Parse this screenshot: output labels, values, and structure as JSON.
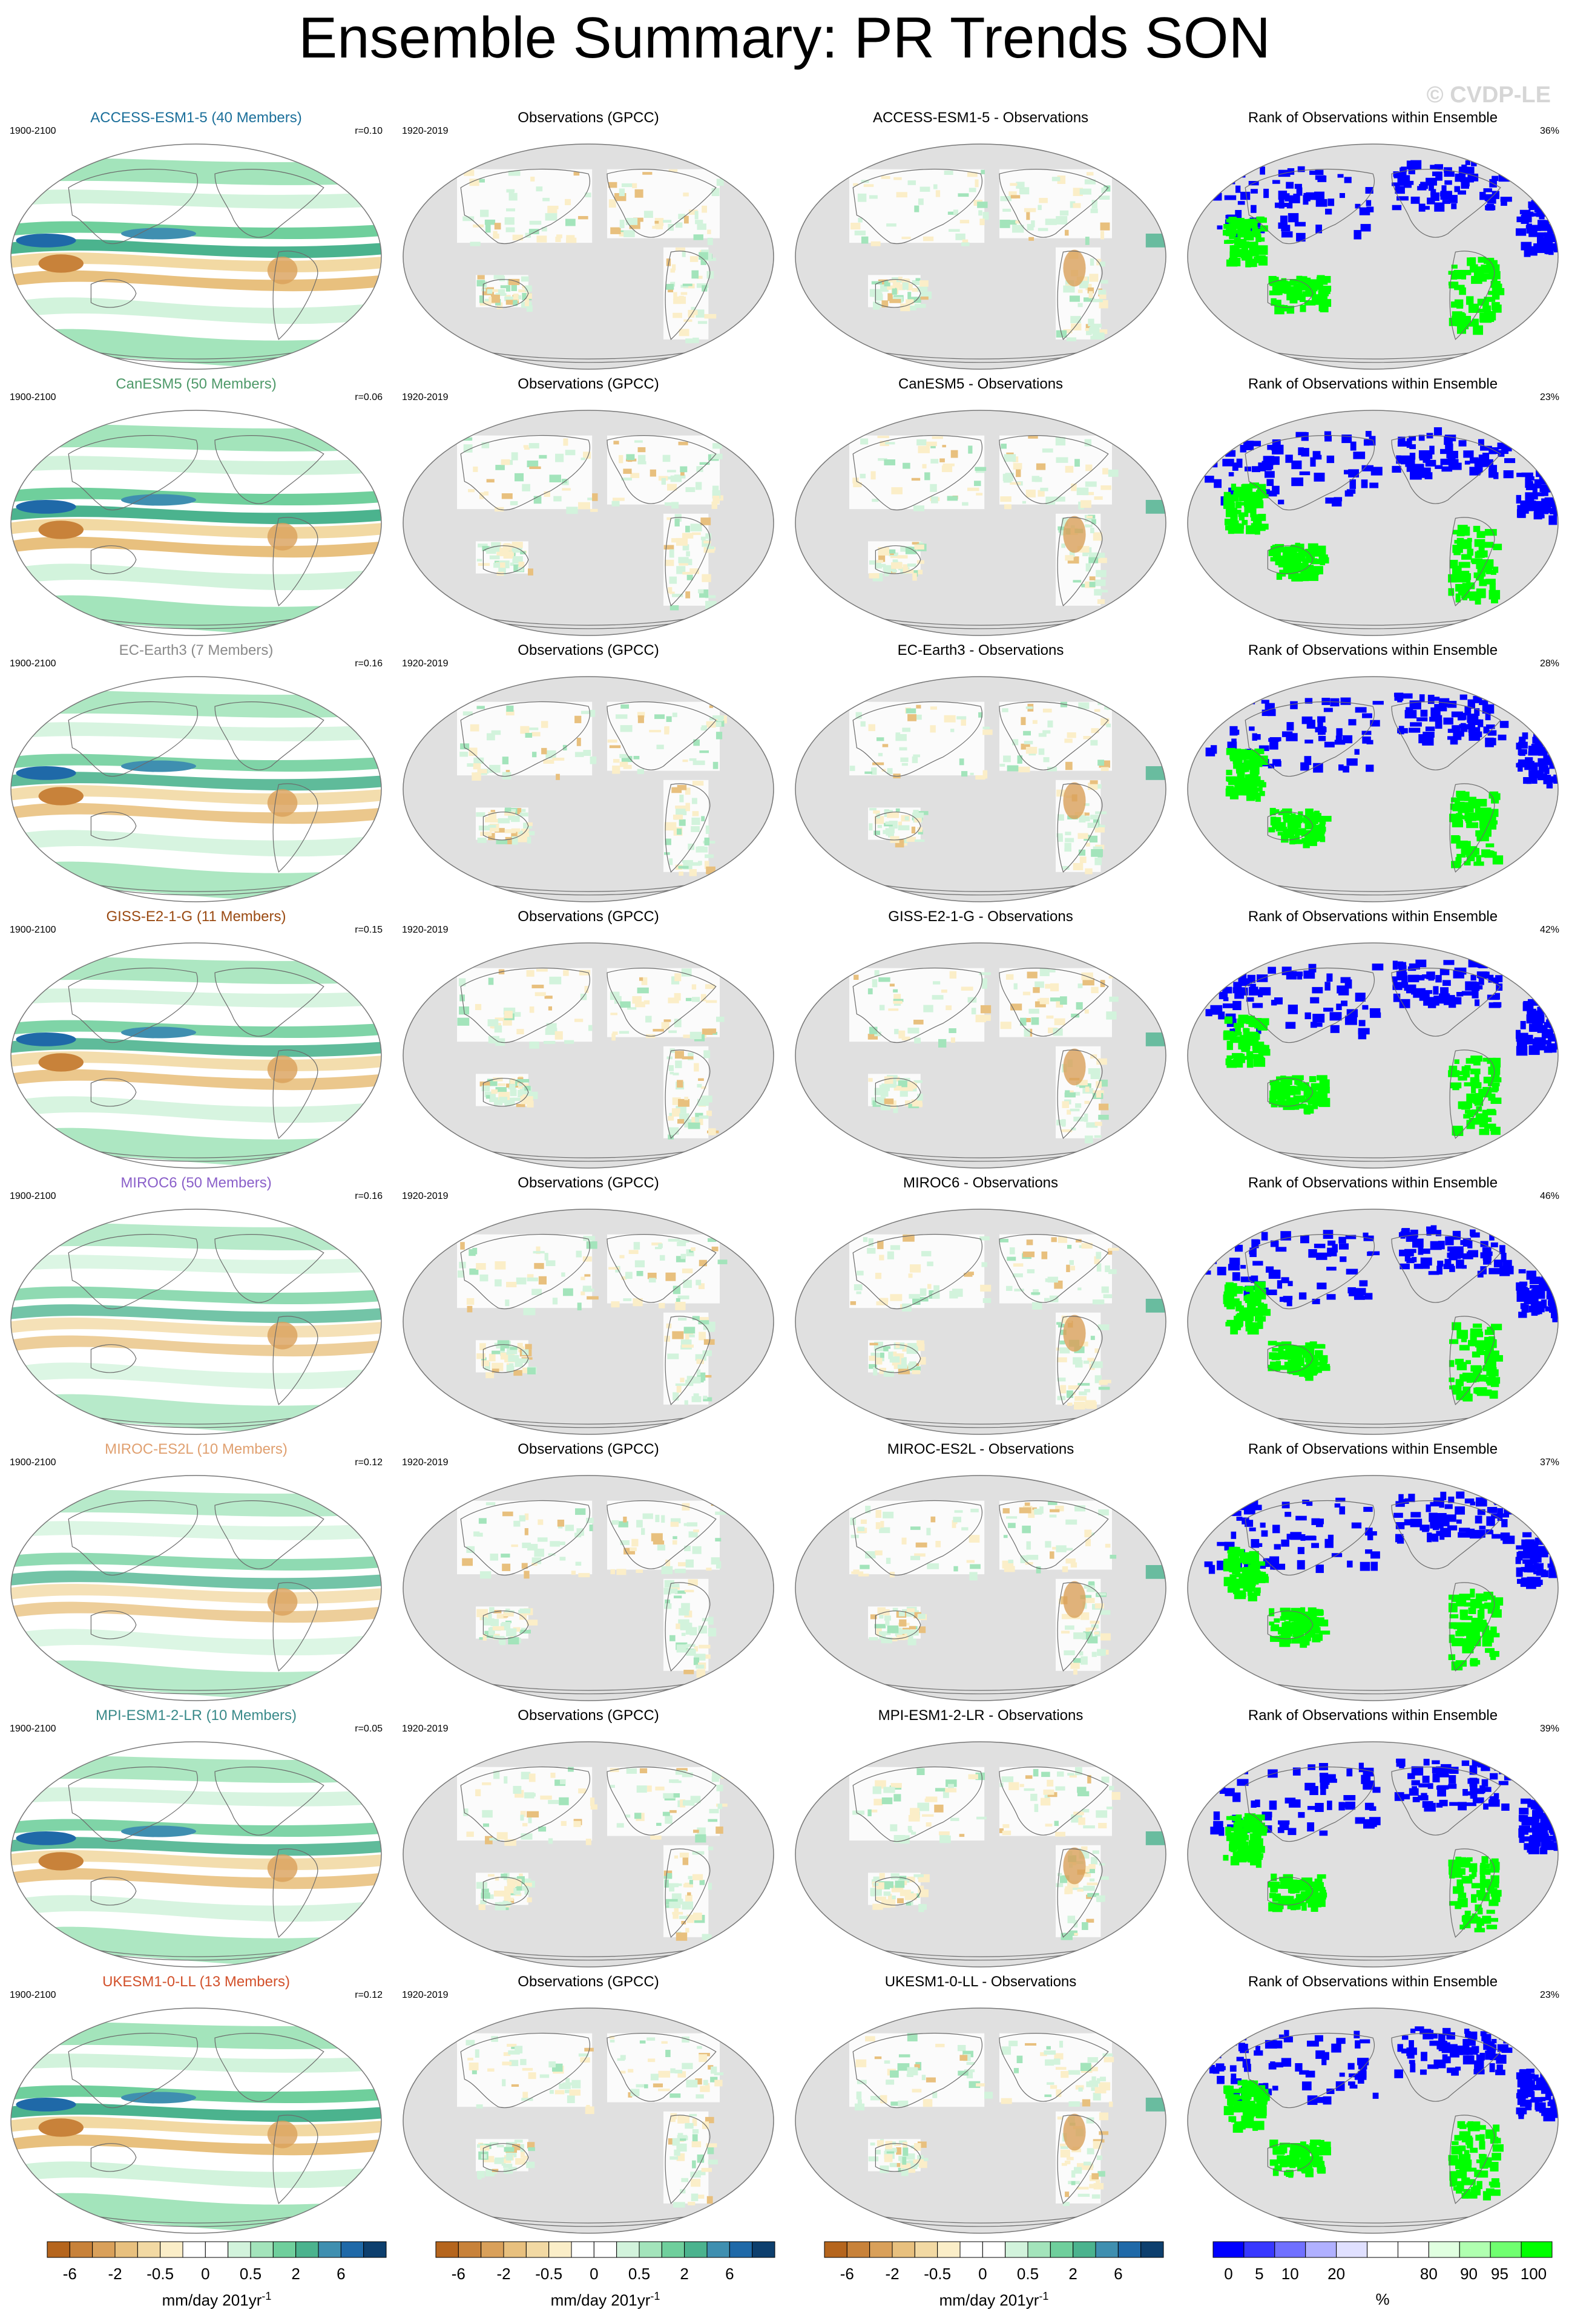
{
  "title": "Ensemble Summary: PR Trends SON",
  "watermark": "© CVDP-LE",
  "columns": {
    "obs_title": "Observations (GPCC)",
    "rank_title": "Rank of Observations within Ensemble",
    "model_period": "1900-2100",
    "obs_period": "1920-2019"
  },
  "rows": [
    {
      "model": "ACCESS-ESM1-5 (40 Members)",
      "color": "#1b6f9a",
      "r": "r=0.10",
      "diff": "ACCESS-ESM1-5 - Observations",
      "rank": "36%",
      "pattern": "strong"
    },
    {
      "model": "CanESM5 (50 Members)",
      "color": "#4f9a6a",
      "r": "r=0.06",
      "diff": "CanESM5 - Observations",
      "rank": "23%",
      "pattern": "strong"
    },
    {
      "model": "EC-Earth3 (7 Members)",
      "color": "#8a8a8a",
      "r": "r=0.16",
      "diff": "EC-Earth3 - Observations",
      "rank": "28%",
      "pattern": "medium"
    },
    {
      "model": "GISS-E2-1-G (11 Members)",
      "color": "#9a4a12",
      "r": "r=0.15",
      "diff": "GISS-E2-1-G - Observations",
      "rank": "42%",
      "pattern": "medium"
    },
    {
      "model": "MIROC6 (50 Members)",
      "color": "#8a5fc9",
      "r": "r=0.16",
      "diff": "MIROC6 - Observations",
      "rank": "46%",
      "pattern": "weak"
    },
    {
      "model": "MIROC-ES2L (10 Members)",
      "color": "#e0a070",
      "r": "r=0.12",
      "diff": "MIROC-ES2L - Observations",
      "rank": "37%",
      "pattern": "weak"
    },
    {
      "model": "MPI-ESM1-2-LR (10 Members)",
      "color": "#3a8a8a",
      "r": "r=0.05",
      "diff": "MPI-ESM1-2-LR - Observations",
      "rank": "39%",
      "pattern": "medium"
    },
    {
      "model": "UKESM1-0-LL (13 Members)",
      "color": "#d2502a",
      "r": "r=0.12",
      "diff": "UKESM1-0-LL - Observations",
      "rank": "23%",
      "pattern": "strong"
    }
  ],
  "colorbars": {
    "trend": {
      "colors": [
        "#b5651d",
        "#c8823a",
        "#d9a05a",
        "#e8c07e",
        "#f2d9a3",
        "#fbeec8",
        "#ffffff",
        "#ffffff",
        "#d2f3dc",
        "#a3e4bb",
        "#6fcf9c",
        "#4bb38e",
        "#3f8fb0",
        "#1f69a8",
        "#0d3f6e"
      ],
      "tick_labels": [
        "-6",
        "-2",
        "-0.5",
        "0",
        "0.5",
        "2",
        "6"
      ],
      "tick_positions": [
        1,
        3,
        5,
        7,
        9,
        11,
        13
      ],
      "unit": "mm/day 201yr",
      "unit_sup": "-1"
    },
    "rank": {
      "colors": [
        "#0000ff",
        "#3838ff",
        "#7070ff",
        "#b0b0ff",
        "#e0e0ff",
        "#ffffff",
        "#ffffff",
        "#e0ffe0",
        "#b0ffb0",
        "#70ff70",
        "#00ff00"
      ],
      "tick_labels": [
        "0",
        "5",
        "10",
        "20",
        "80",
        "90",
        "95",
        "100"
      ],
      "tick_positions": [
        0.5,
        1.5,
        2.5,
        4,
        7,
        8.3,
        9.3,
        10.4
      ],
      "unit": "%"
    }
  },
  "palette": {
    "ocean": "#e0e0e0",
    "land_outline": "#6b6b6b",
    "rank_low": "#0000ff",
    "rank_high": "#00ff00"
  }
}
